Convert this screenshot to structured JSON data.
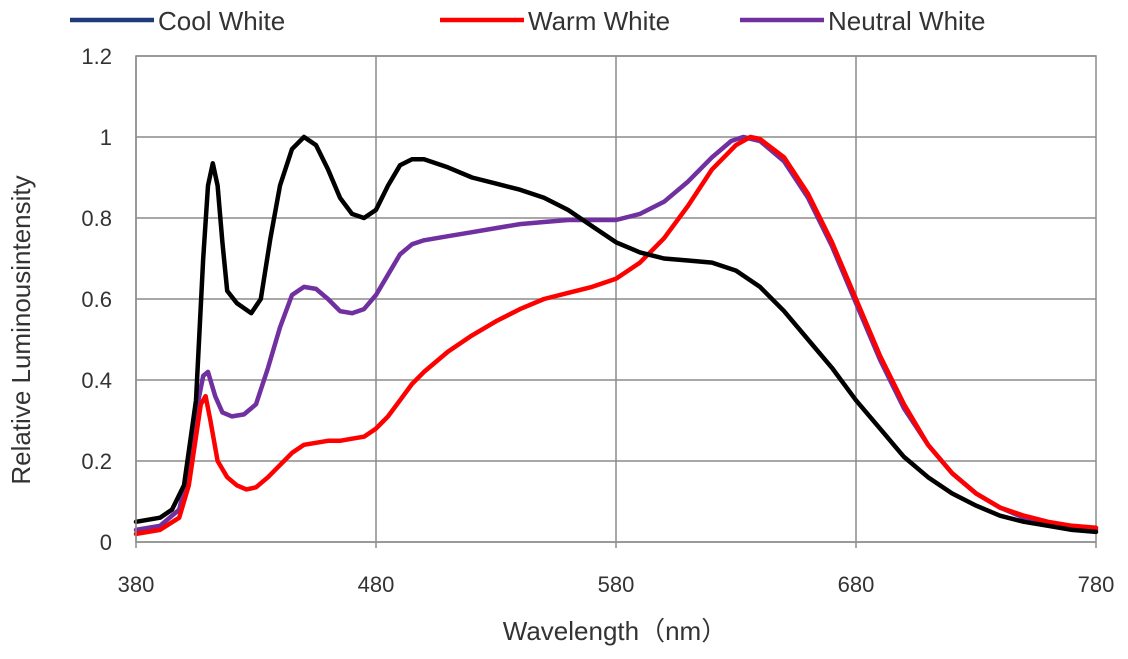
{
  "chart_data": {
    "type": "line",
    "title": "",
    "xlabel": "Wavelength（nm）",
    "ylabel": "Relative Luminousintensity",
    "xlim": [
      380,
      780
    ],
    "ylim": [
      0,
      1.2
    ],
    "x_ticks": [
      380,
      480,
      580,
      680,
      780
    ],
    "y_ticks": [
      0,
      0.2,
      0.4,
      0.6,
      0.8,
      1,
      1.2
    ],
    "x_tick_labels": [
      "380",
      "480",
      "580",
      "680",
      "780"
    ],
    "y_tick_labels": [
      "0",
      "0.2",
      "0.4",
      "0.6",
      "0.8",
      "1",
      "1.2"
    ],
    "grid": true,
    "legend_position": "top",
    "series": [
      {
        "name": "Cool White",
        "color": "#000000",
        "legend_color": "#1f3a7a",
        "points": [
          [
            380,
            0.05
          ],
          [
            390,
            0.06
          ],
          [
            395,
            0.08
          ],
          [
            400,
            0.14
          ],
          [
            405,
            0.35
          ],
          [
            408,
            0.7
          ],
          [
            410,
            0.88
          ],
          [
            412,
            0.935
          ],
          [
            414,
            0.88
          ],
          [
            416,
            0.74
          ],
          [
            418,
            0.62
          ],
          [
            422,
            0.59
          ],
          [
            428,
            0.565
          ],
          [
            432,
            0.6
          ],
          [
            436,
            0.75
          ],
          [
            440,
            0.88
          ],
          [
            445,
            0.97
          ],
          [
            450,
            1.0
          ],
          [
            455,
            0.98
          ],
          [
            460,
            0.92
          ],
          [
            465,
            0.85
          ],
          [
            470,
            0.81
          ],
          [
            475,
            0.8
          ],
          [
            480,
            0.82
          ],
          [
            485,
            0.88
          ],
          [
            490,
            0.93
          ],
          [
            495,
            0.945
          ],
          [
            500,
            0.945
          ],
          [
            510,
            0.925
          ],
          [
            520,
            0.9
          ],
          [
            530,
            0.885
          ],
          [
            540,
            0.87
          ],
          [
            550,
            0.85
          ],
          [
            560,
            0.82
          ],
          [
            570,
            0.78
          ],
          [
            580,
            0.74
          ],
          [
            590,
            0.715
          ],
          [
            600,
            0.7
          ],
          [
            610,
            0.695
          ],
          [
            620,
            0.69
          ],
          [
            630,
            0.67
          ],
          [
            640,
            0.63
          ],
          [
            650,
            0.57
          ],
          [
            660,
            0.5
          ],
          [
            670,
            0.43
          ],
          [
            680,
            0.35
          ],
          [
            690,
            0.28
          ],
          [
            700,
            0.21
          ],
          [
            710,
            0.16
          ],
          [
            720,
            0.12
          ],
          [
            730,
            0.09
          ],
          [
            740,
            0.065
          ],
          [
            750,
            0.05
          ],
          [
            760,
            0.04
          ],
          [
            770,
            0.03
          ],
          [
            780,
            0.025
          ]
        ]
      },
      {
        "name": "Warm White",
        "color": "#ff0000",
        "legend_color": "#ff0000",
        "points": [
          [
            380,
            0.02
          ],
          [
            390,
            0.03
          ],
          [
            398,
            0.06
          ],
          [
            402,
            0.14
          ],
          [
            405,
            0.26
          ],
          [
            407,
            0.34
          ],
          [
            409,
            0.36
          ],
          [
            411,
            0.3
          ],
          [
            414,
            0.2
          ],
          [
            418,
            0.16
          ],
          [
            422,
            0.14
          ],
          [
            426,
            0.13
          ],
          [
            430,
            0.135
          ],
          [
            435,
            0.16
          ],
          [
            440,
            0.19
          ],
          [
            445,
            0.22
          ],
          [
            450,
            0.24
          ],
          [
            455,
            0.245
          ],
          [
            460,
            0.25
          ],
          [
            465,
            0.25
          ],
          [
            470,
            0.255
          ],
          [
            475,
            0.26
          ],
          [
            480,
            0.28
          ],
          [
            485,
            0.31
          ],
          [
            490,
            0.35
          ],
          [
            495,
            0.39
          ],
          [
            500,
            0.42
          ],
          [
            510,
            0.47
          ],
          [
            520,
            0.51
          ],
          [
            530,
            0.545
          ],
          [
            540,
            0.575
          ],
          [
            550,
            0.6
          ],
          [
            560,
            0.615
          ],
          [
            570,
            0.63
          ],
          [
            580,
            0.65
          ],
          [
            590,
            0.69
          ],
          [
            600,
            0.75
          ],
          [
            610,
            0.83
          ],
          [
            620,
            0.92
          ],
          [
            630,
            0.98
          ],
          [
            636,
            1.0
          ],
          [
            640,
            0.995
          ],
          [
            650,
            0.95
          ],
          [
            660,
            0.86
          ],
          [
            670,
            0.74
          ],
          [
            680,
            0.6
          ],
          [
            690,
            0.46
          ],
          [
            700,
            0.34
          ],
          [
            710,
            0.24
          ],
          [
            720,
            0.17
          ],
          [
            730,
            0.12
          ],
          [
            740,
            0.085
          ],
          [
            750,
            0.065
          ],
          [
            760,
            0.05
          ],
          [
            770,
            0.04
          ],
          [
            780,
            0.035
          ]
        ]
      },
      {
        "name": "Neutral White",
        "color": "#7030a0",
        "legend_color": "#7030a0",
        "points": [
          [
            380,
            0.03
          ],
          [
            390,
            0.04
          ],
          [
            398,
            0.08
          ],
          [
            402,
            0.18
          ],
          [
            405,
            0.32
          ],
          [
            408,
            0.41
          ],
          [
            410,
            0.42
          ],
          [
            413,
            0.36
          ],
          [
            416,
            0.32
          ],
          [
            420,
            0.31
          ],
          [
            425,
            0.315
          ],
          [
            430,
            0.34
          ],
          [
            435,
            0.43
          ],
          [
            440,
            0.53
          ],
          [
            445,
            0.61
          ],
          [
            450,
            0.63
          ],
          [
            455,
            0.625
          ],
          [
            460,
            0.6
          ],
          [
            465,
            0.57
          ],
          [
            470,
            0.565
          ],
          [
            475,
            0.575
          ],
          [
            480,
            0.61
          ],
          [
            485,
            0.66
          ],
          [
            490,
            0.71
          ],
          [
            495,
            0.735
          ],
          [
            500,
            0.745
          ],
          [
            510,
            0.755
          ],
          [
            520,
            0.765
          ],
          [
            530,
            0.775
          ],
          [
            540,
            0.785
          ],
          [
            550,
            0.79
          ],
          [
            560,
            0.795
          ],
          [
            570,
            0.795
          ],
          [
            580,
            0.795
          ],
          [
            590,
            0.81
          ],
          [
            600,
            0.84
          ],
          [
            610,
            0.89
          ],
          [
            620,
            0.95
          ],
          [
            628,
            0.99
          ],
          [
            633,
            1.0
          ],
          [
            640,
            0.99
          ],
          [
            650,
            0.94
          ],
          [
            660,
            0.85
          ],
          [
            670,
            0.73
          ],
          [
            680,
            0.59
          ],
          [
            690,
            0.45
          ],
          [
            700,
            0.33
          ],
          [
            710,
            0.24
          ],
          [
            720,
            0.17
          ],
          [
            730,
            0.12
          ],
          [
            740,
            0.085
          ],
          [
            750,
            0.06
          ],
          [
            760,
            0.045
          ],
          [
            770,
            0.035
          ],
          [
            780,
            0.03
          ]
        ]
      }
    ]
  }
}
